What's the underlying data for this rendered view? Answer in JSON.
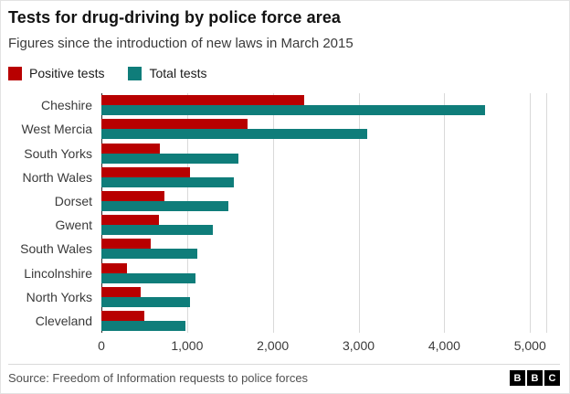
{
  "header": {
    "title": "Tests for drug-driving by police force area",
    "subtitle": "Figures since the introduction of new laws in March 2015"
  },
  "legend": [
    {
      "label": "Positive tests",
      "color": "#b80000"
    },
    {
      "label": "Total tests",
      "color": "#0f7d7a"
    }
  ],
  "footer": {
    "source": "Source: Freedom of Information requests to police forces",
    "logo_letters": [
      "B",
      "B",
      "C"
    ]
  },
  "chart_data": {
    "type": "bar",
    "orientation": "horizontal",
    "title": "Tests for drug-driving by police force area",
    "subtitle": "Figures since the introduction of new laws in March 2015",
    "categories": [
      "Cheshire",
      "West Mercia",
      "South Yorks",
      "North Wales",
      "Dorset",
      "Gwent",
      "South Wales",
      "Lincolnshire",
      "North Yorks",
      "Cleveland"
    ],
    "series": [
      {
        "name": "Positive tests",
        "color": "#b80000",
        "values": [
          2370,
          1700,
          680,
          1030,
          740,
          670,
          575,
          300,
          460,
          500
        ]
      },
      {
        "name": "Total tests",
        "color": "#0f7d7a",
        "values": [
          4480,
          3100,
          1600,
          1540,
          1480,
          1300,
          1120,
          1100,
          1030,
          980
        ]
      }
    ],
    "xlim": [
      0,
      5200
    ],
    "xticks": [
      0,
      1000,
      2000,
      3000,
      4000,
      5000
    ],
    "xtick_labels": [
      "0",
      "1,000",
      "2,000",
      "3,000",
      "4,000",
      "5,000"
    ],
    "grid": "vertical",
    "legend_position": "top",
    "xlabel": "",
    "ylabel": ""
  }
}
